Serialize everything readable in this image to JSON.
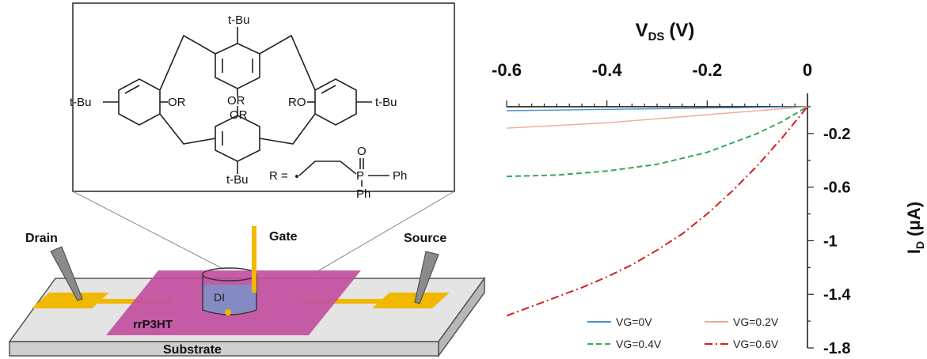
{
  "molecule": {
    "substituents": [
      "t-Bu",
      "t-Bu",
      "t-Bu",
      "t-Bu"
    ],
    "oxy_groups": [
      "OR",
      "OR",
      "RO",
      "OR"
    ],
    "r_group": {
      "label": "R =",
      "oxygen": "O",
      "phosphorus": "P",
      "phenyl_1": "Ph",
      "phenyl_2": "Ph"
    }
  },
  "device": {
    "labels": {
      "drain": "Drain",
      "gate": "Gate",
      "source": "Source",
      "dielectric": "DI",
      "polymer": "rrP3HT",
      "substrate": "Substrate"
    },
    "colors": {
      "substrate": "#dcdcdc",
      "polymer": "#c24fa0",
      "electrode": "#f0b800",
      "water": "#7a93c8"
    }
  },
  "chart_data": {
    "type": "line",
    "xlabel": "V",
    "xlabel_sub": "DS",
    "xlabel_unit": "(V)",
    "ylabel": "I",
    "ylabel_sub": "D",
    "ylabel_unit": "(μA)",
    "xlim": [
      -0.6,
      0
    ],
    "ylim": [
      -1.8,
      0.1
    ],
    "x_ticks": [
      -0.6,
      -0.4,
      -0.2,
      0
    ],
    "x_tick_labels": [
      "-0.6",
      "-0.4",
      "-0.2",
      "0"
    ],
    "y_ticks": [
      -0.2,
      -0.6,
      -1,
      -1.4,
      -1.8
    ],
    "y_tick_labels": [
      "-0.2",
      "-0.6",
      "-1",
      "-1.4",
      "-1.8"
    ],
    "x_axis_position": "top",
    "y_axis_position": "right",
    "grid": false,
    "legend_position": "bottom",
    "series": [
      {
        "name": "VG=0V",
        "color": "#4a90c8",
        "dash": "solid",
        "x": [
          -0.6,
          -0.5,
          -0.4,
          -0.3,
          -0.2,
          -0.1,
          0
        ],
        "y": [
          -0.03,
          -0.025,
          -0.02,
          -0.015,
          -0.01,
          -0.005,
          0
        ]
      },
      {
        "name": "VG=0.2V",
        "color": "#f0a898",
        "dash": "solid",
        "x": [
          -0.6,
          -0.5,
          -0.4,
          -0.3,
          -0.2,
          -0.1,
          0
        ],
        "y": [
          -0.16,
          -0.14,
          -0.12,
          -0.09,
          -0.06,
          -0.03,
          0
        ]
      },
      {
        "name": "VG=0.4V",
        "color": "#3aa55a",
        "dash": "dashed",
        "x": [
          -0.6,
          -0.5,
          -0.4,
          -0.3,
          -0.2,
          -0.1,
          -0.05,
          0
        ],
        "y": [
          -0.52,
          -0.51,
          -0.48,
          -0.43,
          -0.34,
          -0.2,
          -0.11,
          0
        ]
      },
      {
        "name": "VG=0.6V",
        "color": "#d42020",
        "dash": "dashdot",
        "x": [
          -0.6,
          -0.55,
          -0.5,
          -0.45,
          -0.4,
          -0.35,
          -0.3,
          -0.25,
          -0.2,
          -0.15,
          -0.1,
          -0.05,
          0
        ],
        "y": [
          -1.56,
          -1.49,
          -1.42,
          -1.35,
          -1.27,
          -1.18,
          -1.07,
          -0.95,
          -0.8,
          -0.63,
          -0.44,
          -0.23,
          0
        ]
      }
    ]
  }
}
